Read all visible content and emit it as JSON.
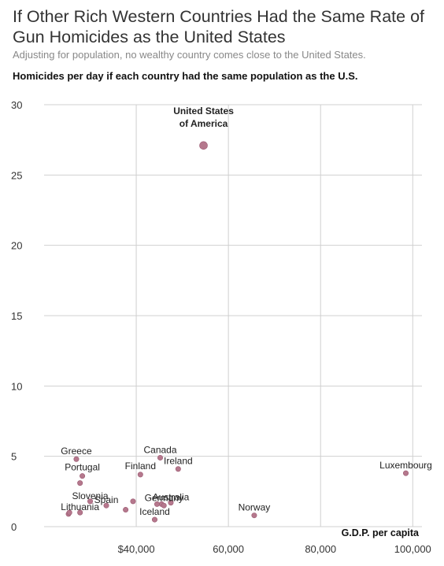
{
  "header": {
    "headline": "If Other Rich Western Countries Had the Same Rate of Gun Homicides as the United States",
    "dek": "Adjusting for population, no wealthy country comes close to the United States.",
    "chart_title": "Homicides per day if each country had the same population as the U.S."
  },
  "colors": {
    "point": "#b5788d",
    "point_stroke": "#9c5a72",
    "grid": "#d0d0d0"
  },
  "chart_data": {
    "type": "scatter",
    "title": "Homicides per day if each country had the same population as the U.S.",
    "xlabel": "G.D.P. per capita",
    "ylabel": "",
    "xlim": [
      20000,
      102000
    ],
    "ylim": [
      0,
      30
    ],
    "x_ticks": [
      {
        "value": 40000,
        "label": "$40,000"
      },
      {
        "value": 60000,
        "label": "60,000"
      },
      {
        "value": 80000,
        "label": "80,000"
      },
      {
        "value": 100000,
        "label": "100,000"
      }
    ],
    "y_ticks": [
      {
        "value": 0,
        "label": "0"
      },
      {
        "value": 5,
        "label": "5"
      },
      {
        "value": 10,
        "label": "10"
      },
      {
        "value": 15,
        "label": "15"
      },
      {
        "value": 20,
        "label": "20"
      },
      {
        "value": 25,
        "label": "25"
      },
      {
        "value": 30,
        "label": "30"
      }
    ],
    "grid": true,
    "points": [
      {
        "label": "United States of America",
        "label_lines": [
          "United States",
          "of America"
        ],
        "bold": true,
        "x": 54600,
        "y": 27.1,
        "size": "large"
      },
      {
        "label": "Greece",
        "x": 27000,
        "y": 4.8
      },
      {
        "label": "Canada",
        "x": 45200,
        "y": 4.9
      },
      {
        "label": "Ireland",
        "x": 49100,
        "y": 4.1
      },
      {
        "label": "Portugal",
        "x": 28300,
        "y": 3.6
      },
      {
        "label": "Finland",
        "x": 40900,
        "y": 3.7
      },
      {
        "label": "Luxembourg",
        "x": 98500,
        "y": 3.8
      },
      {
        "label": "",
        "x": 27800,
        "y": 3.1
      },
      {
        "label": "Slovenia",
        "x": 30000,
        "y": 1.8
      },
      {
        "label": "Spain",
        "x": 33500,
        "y": 1.5
      },
      {
        "label": "Germany",
        "x": 45500,
        "y": 1.6
      },
      {
        "label": "Australia",
        "x": 47500,
        "y": 1.7
      },
      {
        "label": "",
        "x": 39300,
        "y": 1.8
      },
      {
        "label": "",
        "x": 44500,
        "y": 1.6
      },
      {
        "label": "",
        "x": 46000,
        "y": 1.5
      },
      {
        "label": "",
        "x": 37700,
        "y": 1.2
      },
      {
        "label": "Lithuania",
        "x": 27800,
        "y": 1.0
      },
      {
        "label": "",
        "x": 25300,
        "y": 0.9
      },
      {
        "label": "",
        "x": 25500,
        "y": 1.0
      },
      {
        "label": "Norway",
        "x": 65600,
        "y": 0.8
      },
      {
        "label": "Iceland",
        "x": 44000,
        "y": 0.5
      }
    ]
  }
}
